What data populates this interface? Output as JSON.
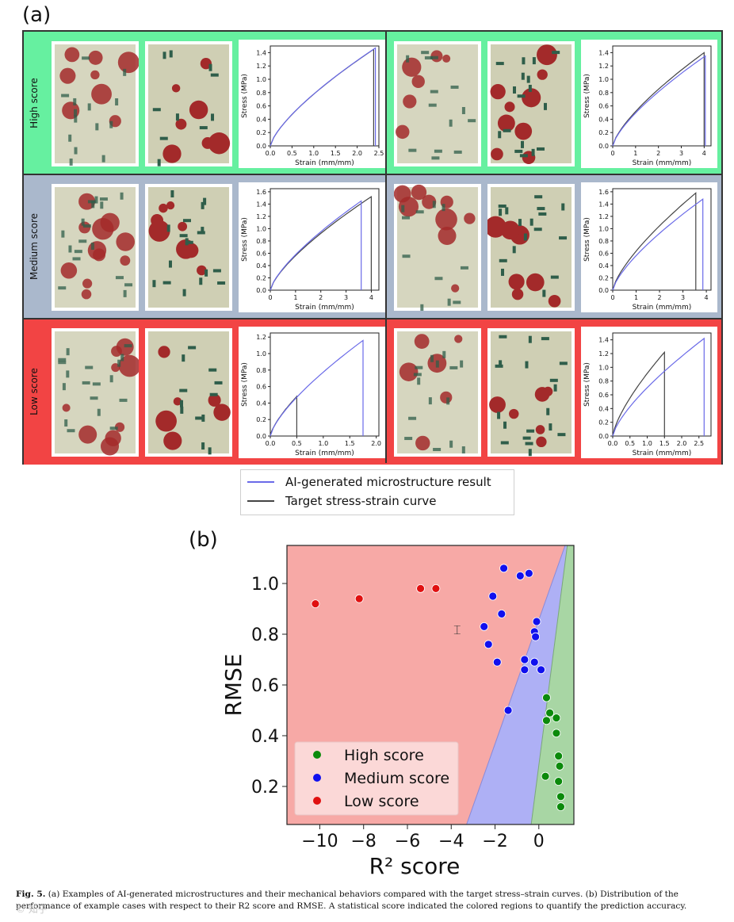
{
  "panel_a": {
    "label": "(a)",
    "row_labels": [
      "High score",
      "Medium score",
      "Low score"
    ],
    "row_colors": [
      "#66f0a0",
      "#aab8cc",
      "#f24444"
    ],
    "stress_axis_label": "Stress (MPa)",
    "strain_axis_label_a": "Strain (mm/mm)",
    "charts": [
      {
        "yticks": [
          "0.0",
          "0.2",
          "0.4",
          "0.6",
          "0.8",
          "1.0",
          "1.2",
          "1.4"
        ],
        "xticks": [
          "0.0",
          "0.5",
          "1.0",
          "1.5",
          "2.0",
          "2.5"
        ],
        "xmax": 2.5,
        "ymax": 1.5
      },
      {
        "yticks": [
          "0.0",
          "0.2",
          "0.4",
          "0.6",
          "0.8",
          "1.0",
          "1.2",
          "1.4"
        ],
        "xticks": [
          "0",
          "1",
          "2",
          "3",
          "4"
        ],
        "xmax": 4.3,
        "ymax": 1.5
      },
      {
        "yticks": [
          "0.0",
          "0.2",
          "0.4",
          "0.6",
          "0.8",
          "1.0",
          "1.2",
          "1.4",
          "1.6"
        ],
        "xticks": [
          "0",
          "1",
          "2",
          "3",
          "4"
        ],
        "xmax": 4.3,
        "ymax": 1.65
      },
      {
        "yticks": [
          "0.0",
          "0.2",
          "0.4",
          "0.6",
          "0.8",
          "1.0",
          "1.2",
          "1.4",
          "1.6"
        ],
        "xticks": [
          "0",
          "1",
          "2",
          "3",
          "4"
        ],
        "xmax": 4.2,
        "ymax": 1.65
      },
      {
        "yticks": [
          "0.0",
          "0.2",
          "0.4",
          "0.6",
          "0.8",
          "1.0",
          "1.2"
        ],
        "xticks": [
          "0.0",
          "0.5",
          "1.0",
          "1.5",
          "2.0"
        ],
        "xmax": 2.05,
        "ymax": 1.25
      },
      {
        "yticks": [
          "0.0",
          "0.2",
          "0.4",
          "0.6",
          "0.8",
          "1.0",
          "1.2",
          "1.4"
        ],
        "xticks": [
          "0.0",
          "0.5",
          "1.0",
          "1.5",
          "2.0",
          "2.5"
        ],
        "xmax": 2.85,
        "ymax": 1.5
      }
    ],
    "legend": {
      "ai_label": "AI-generated microstructure result",
      "target_label": "Target stress-strain curve",
      "ai_color": "#6a6ae8",
      "target_color": "#444444"
    }
  },
  "panel_b": {
    "label": "(b)",
    "chart_data": {
      "type": "scatter",
      "xlabel": "R² score",
      "ylabel": "RMSE",
      "xlim": [
        -11.5,
        1.6
      ],
      "ylim": [
        0.05,
        1.15
      ],
      "xticks": [
        "−10",
        "−8",
        "−6",
        "−4",
        "−2",
        "0"
      ],
      "xtick_values": [
        -10,
        -8,
        -6,
        -4,
        -2,
        0
      ],
      "yticks": [
        "0.2",
        "0.4",
        "0.6",
        "0.8",
        "1.0"
      ],
      "ytick_values": [
        0.2,
        0.4,
        0.6,
        0.8,
        1.0
      ],
      "regions": [
        {
          "name": "Low score",
          "color": "#f7a9a6"
        },
        {
          "name": "Medium score",
          "color": "#aeb0f5"
        },
        {
          "name": "High score",
          "color": "#a8d6a4"
        }
      ],
      "series": [
        {
          "name": "High score",
          "color": "#0b8a0b",
          "points": [
            [
              0.35,
              0.55
            ],
            [
              0.5,
              0.49
            ],
            [
              0.8,
              0.47
            ],
            [
              0.35,
              0.46
            ],
            [
              0.8,
              0.41
            ],
            [
              0.9,
              0.32
            ],
            [
              0.95,
              0.28
            ],
            [
              0.3,
              0.24
            ],
            [
              0.9,
              0.22
            ],
            [
              1.0,
              0.16
            ],
            [
              1.0,
              0.12
            ]
          ]
        },
        {
          "name": "Medium score",
          "color": "#1010ee",
          "points": [
            [
              -1.6,
              1.06
            ],
            [
              -0.85,
              1.03
            ],
            [
              -0.45,
              1.04
            ],
            [
              -2.1,
              0.95
            ],
            [
              -1.7,
              0.88
            ],
            [
              -2.5,
              0.83
            ],
            [
              -0.1,
              0.85
            ],
            [
              -0.2,
              0.81
            ],
            [
              -0.15,
              0.79
            ],
            [
              -2.3,
              0.76
            ],
            [
              -1.9,
              0.69
            ],
            [
              -0.65,
              0.7
            ],
            [
              -0.65,
              0.66
            ],
            [
              -0.2,
              0.69
            ],
            [
              0.1,
              0.66
            ],
            [
              -1.4,
              0.5
            ]
          ]
        },
        {
          "name": "Low score",
          "color": "#e01010",
          "points": [
            [
              -10.2,
              0.92
            ],
            [
              -8.2,
              0.94
            ],
            [
              -5.4,
              0.98
            ],
            [
              -4.7,
              0.98
            ]
          ]
        }
      ],
      "legend": [
        "High score",
        "Medium score",
        "Low score"
      ]
    }
  },
  "caption": {
    "fig_label": "Fig. 5.",
    "text": "(a) Examples of AI-generated microstructures and their mechanical behaviors compared with the target stress–strain curves. (b) Distribution of the performance of example cases with respect to their R2 score and RMSE. A statistical score indicated the colored regions to quantify the prediction accuracy."
  },
  "watermark": "© 知乎"
}
